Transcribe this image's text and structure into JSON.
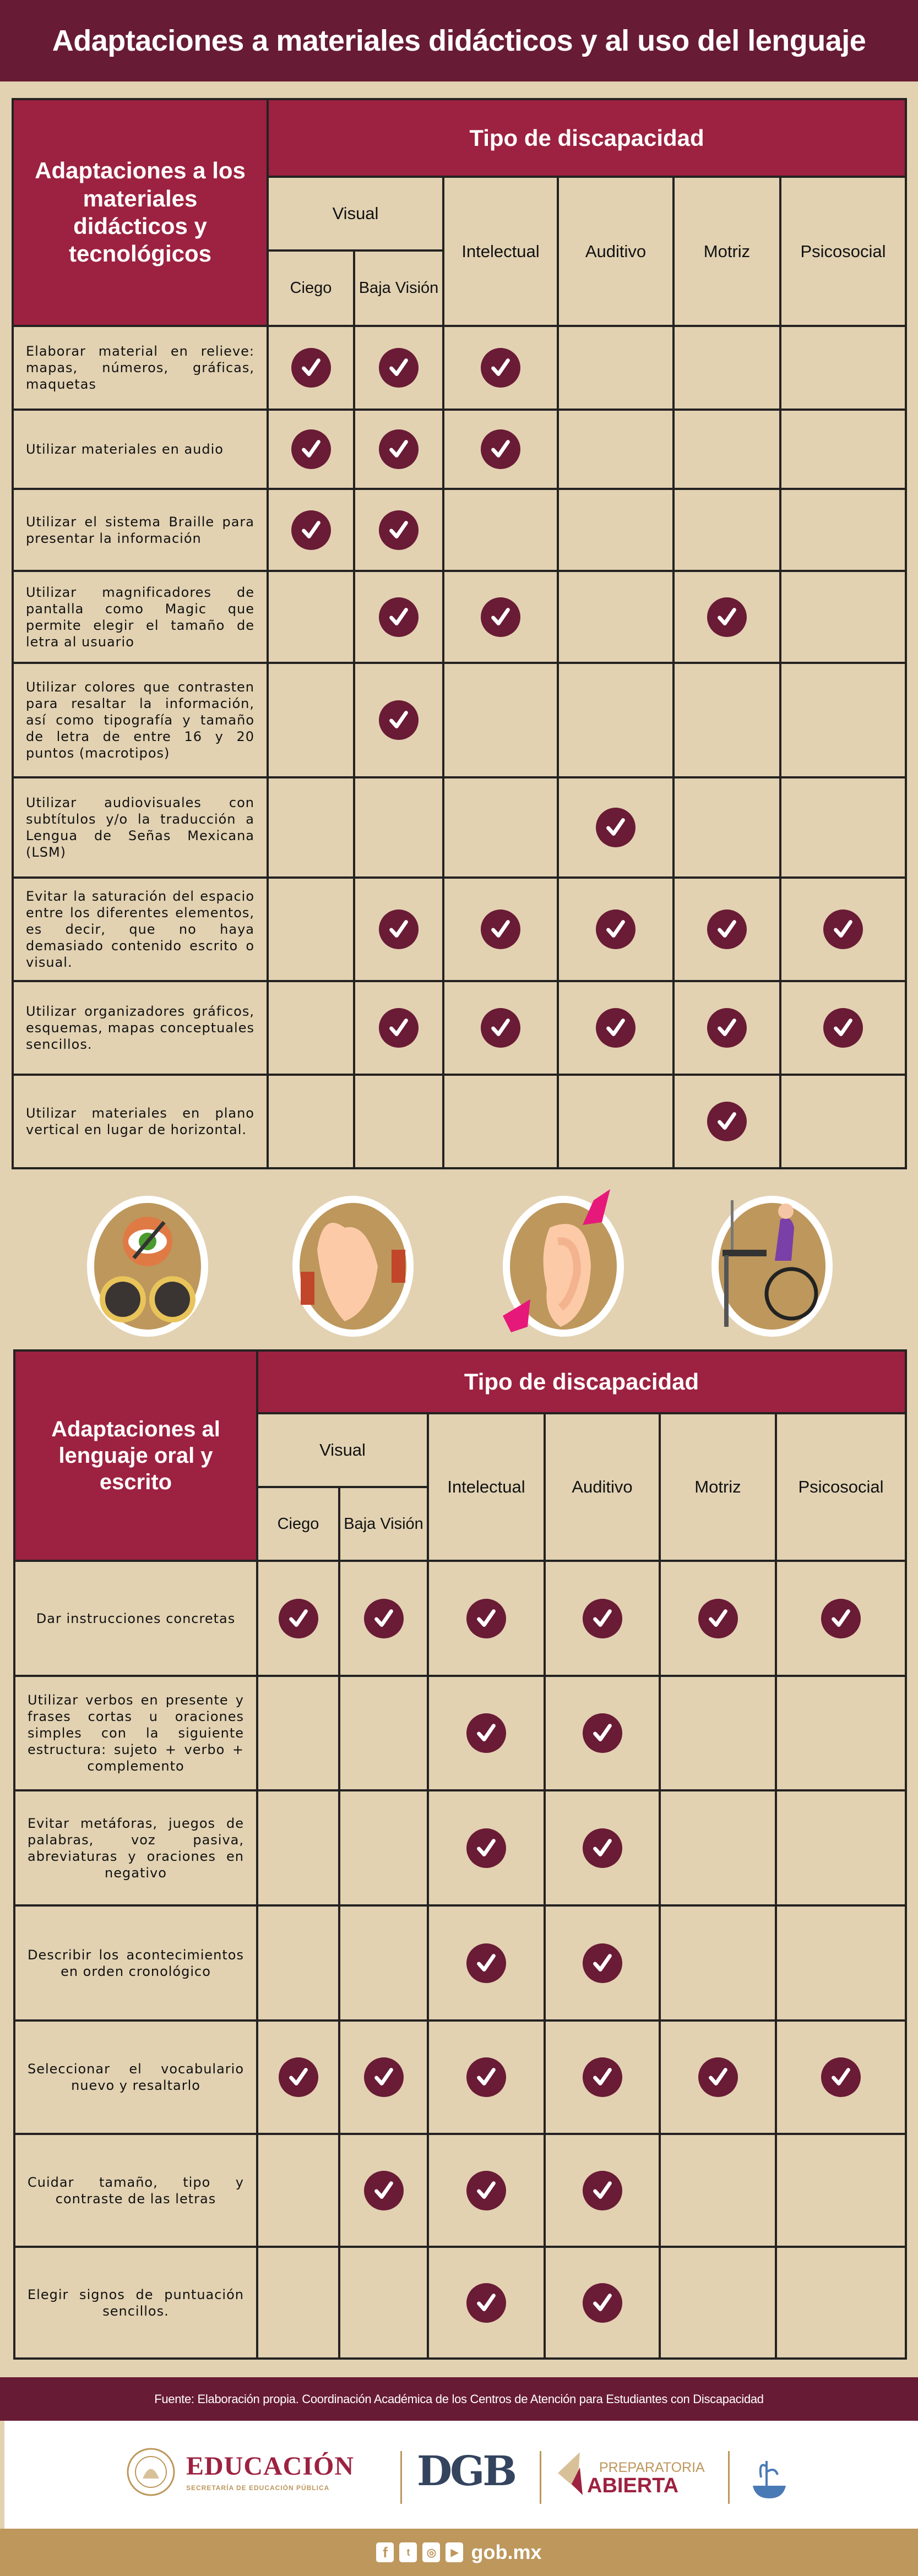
{
  "title": "Adaptaciones a materiales didácticos y al uso del lenguaje",
  "colors": {
    "header_band": "#681b35",
    "table_header": "#9d2140",
    "background": "#e2d2b2",
    "check": "#6a1b35",
    "footer_gold": "#bd975c"
  },
  "table1": {
    "corner": "Adaptaciones a los materiales didácticos y tecnológicos",
    "group_header": "Tipo de discapacidad",
    "visual": "Visual",
    "columns": [
      "Ciego",
      "Baja Visión",
      "Intelectual",
      "Auditivo",
      "Motriz",
      "Psicosocial"
    ],
    "rows": [
      {
        "text": "Elaborar material en relieve: mapas, números, gráficas, maquetas",
        "checks": [
          true,
          true,
          true,
          false,
          false,
          false
        ]
      },
      {
        "text": "Utilizar materiales en audio",
        "checks": [
          true,
          true,
          true,
          false,
          false,
          false
        ]
      },
      {
        "text": "Utilizar el sistema Braille para presentar la información",
        "checks": [
          true,
          true,
          false,
          false,
          false,
          false
        ]
      },
      {
        "text": "Utilizar magnificadores de pantalla como Magic que permite elegir el tamaño de letra al usuario",
        "checks": [
          false,
          true,
          true,
          false,
          true,
          false
        ]
      },
      {
        "text": "Utilizar colores que contrasten para resaltar la información, así como tipografía y tamaño de letra de entre 16 y 20 puntos (macrotipos)",
        "checks": [
          false,
          true,
          false,
          false,
          false,
          false
        ]
      },
      {
        "text": "Utilizar audiovisuales con subtítulos y/o la traducción a Lengua de Señas Mexicana (LSM)",
        "checks": [
          false,
          false,
          false,
          true,
          false,
          false
        ]
      },
      {
        "text": "Evitar la saturación del espacio entre los diferentes elementos, es decir, que no haya demasiado contenido escrito o visual.",
        "checks": [
          false,
          true,
          true,
          true,
          true,
          true
        ]
      },
      {
        "text": "Utilizar organizadores gráficos, esquemas, mapas conceptuales sencillos.",
        "checks": [
          false,
          true,
          true,
          true,
          true,
          true
        ]
      },
      {
        "text": "Utilizar materiales en plano vertical en lugar de horizontal.",
        "checks": [
          false,
          false,
          false,
          false,
          true,
          false
        ]
      }
    ]
  },
  "icons": [
    "blind-glasses-icon",
    "sign-language-hands-icon",
    "ear-icon",
    "wheelchair-user-icon"
  ],
  "table2": {
    "corner": "Adaptaciones al lenguaje oral y escrito",
    "group_header": "Tipo de discapacidad",
    "visual": "Visual",
    "columns": [
      "Ciego",
      "Baja Visión",
      "Intelectual",
      "Auditivo",
      "Motriz",
      "Psicosocial"
    ],
    "rows": [
      {
        "text": "Dar instrucciones concretas",
        "checks": [
          true,
          true,
          true,
          true,
          true,
          true
        ]
      },
      {
        "text": "Utilizar verbos en presente y frases cortas u oraciones simples con la siguiente estructura: sujeto + verbo + complemento",
        "checks": [
          false,
          false,
          true,
          true,
          false,
          false
        ]
      },
      {
        "text": "Evitar metáforas, juegos de palabras, voz pasiva, abreviaturas y oraciones en negativo",
        "checks": [
          false,
          false,
          true,
          true,
          false,
          false
        ]
      },
      {
        "text": "Describir los acontecimientos en orden cronológico",
        "checks": [
          false,
          false,
          true,
          true,
          false,
          false
        ]
      },
      {
        "text": "Seleccionar el vocabulario nuevo y resaltarlo",
        "checks": [
          true,
          true,
          true,
          true,
          true,
          true
        ]
      },
      {
        "text": "Cuidar tamaño, tipo y contraste de las letras",
        "checks": [
          false,
          true,
          true,
          true,
          false,
          false
        ]
      },
      {
        "text": "Elegir signos de puntuación sencillos.",
        "checks": [
          false,
          false,
          true,
          true,
          false,
          false
        ]
      }
    ]
  },
  "footer": {
    "source": "Fuente: Elaboración propia. Coordinación Académica de los Centros de Atención para Estudiantes con Discapacidad",
    "logo_educacion": "EDUCACIÓN",
    "logo_sep": "SECRETARÍA DE EDUCACIÓN PÚBLICA",
    "logo_dgb": "DGB",
    "logo_prep_1": "PREPARATORIA",
    "logo_prep_2": "ABIERTA",
    "social": [
      "facebook-icon",
      "twitter-icon",
      "instagram-icon",
      "youtube-icon"
    ],
    "site": "gob.mx"
  }
}
